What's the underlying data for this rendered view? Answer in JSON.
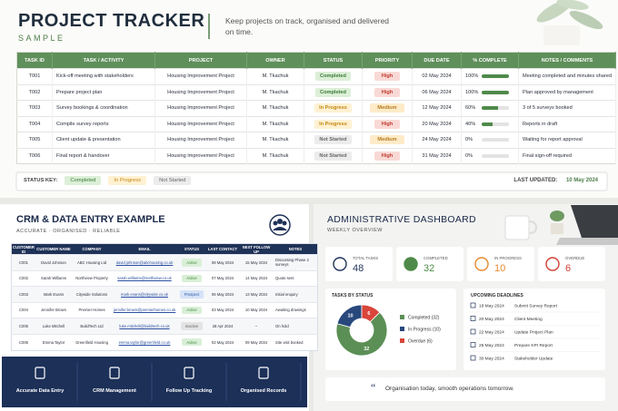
{
  "header": {
    "title": "PROJECT TRACKER",
    "subtitle": "SAMPLE",
    "tagline": "Keep projects on track, organised and delivered on time."
  },
  "project_table": {
    "columns": [
      "TASK ID",
      "TASK / ACTIVITY",
      "PROJECT",
      "OWNER",
      "STATUS",
      "PRIORITY",
      "DUE DATE",
      "% COMPLETE",
      "NOTES / COMMENTS"
    ],
    "rows": [
      {
        "id": "T001",
        "task": "Kick-off meeting with stakeholders",
        "project": "Housing Improvement Project",
        "owner": "M. Tkachuk",
        "status": "Completed",
        "priority": {
          "label": "High",
          "bg": "#f9d9d6",
          "fg": "#c0392b"
        },
        "due": "02 May 2024",
        "complete": {
          "value": 100,
          "label": "100%"
        },
        "notes": "Meeting completed and minutes shared"
      },
      {
        "id": "T002",
        "task": "Prepare project plan",
        "project": "Housing Improvement Project",
        "owner": "M. Tkachuk",
        "status": "Completed",
        "priority": {
          "label": "High",
          "bg": "#f9d9d6",
          "fg": "#c0392b"
        },
        "due": "06 May 2024",
        "complete": {
          "value": 100,
          "label": "100%"
        },
        "notes": "Plan approved by management"
      },
      {
        "id": "T003",
        "task": "Survey bookings & coordination",
        "project": "Housing Improvement Project",
        "owner": "M. Tkachuk",
        "status": "In Progress",
        "priority": {
          "label": "Medium",
          "bg": "#fdebc8",
          "fg": "#b7791f"
        },
        "due": "12 May 2024",
        "complete": {
          "value": 60,
          "label": "60%"
        },
        "notes": "3 of 5 surveys booked"
      },
      {
        "id": "T004",
        "task": "Compile survey reports",
        "project": "Housing Improvement Project",
        "owner": "M. Tkachuk",
        "status": "In Progress",
        "priority": {
          "label": "High",
          "bg": "#f9d9d6",
          "fg": "#c0392b"
        },
        "due": "20 May 2024",
        "complete": {
          "value": 40,
          "label": "40%"
        },
        "notes": "Reports in draft"
      },
      {
        "id": "T005",
        "task": "Client update & presentation",
        "project": "Housing Improvement Project",
        "owner": "M. Tkachuk",
        "status": "Not Started",
        "priority": {
          "label": "Medium",
          "bg": "#fdebc8",
          "fg": "#b7791f"
        },
        "due": "24 May 2024",
        "complete": {
          "value": 0,
          "label": "0%"
        },
        "notes": "Waiting for report approval"
      },
      {
        "id": "T006",
        "task": "Final report & handover",
        "project": "Housing Improvement Project",
        "owner": "M. Tkachuk",
        "status": "Not Started",
        "priority": {
          "label": "High",
          "bg": "#f9d9d6",
          "fg": "#c0392b"
        },
        "due": "31 May 2024",
        "complete": {
          "value": 0,
          "label": "0%"
        },
        "notes": "Final sign-off required"
      }
    ]
  },
  "status_key": {
    "label": "STATUS KEY:",
    "items": [
      {
        "label": "Completed",
        "bg": "#dcefd7",
        "fg": "#3c7a3a"
      },
      {
        "label": "In Progress",
        "bg": "#fff1d2",
        "fg": "#c48712"
      },
      {
        "label": "Not Started",
        "bg": "#ececec",
        "fg": "#666666"
      }
    ]
  },
  "last_updated": {
    "label": "LAST UPDATED:",
    "value": "10 May 2024"
  },
  "crm": {
    "title": "CRM & DATA ENTRY EXAMPLE",
    "subtitle": "ACCURATE · ORGANISED · RELIABLE",
    "columns": [
      "CUSTOMER ID",
      "CUSTOMER NAME",
      "COMPANY",
      "EMAIL",
      "STATUS",
      "LAST CONTACT",
      "NEXT FOLLOW UP",
      "NOTES"
    ],
    "rows": [
      {
        "id": "C001",
        "name": "David Johnson",
        "company": "ABC Housing Ltd",
        "email": "david.johnson@abchousing.co.uk",
        "status": {
          "label": "Active",
          "bg": "#d9efd6",
          "fg": "#3f8a3c"
        },
        "last_contact": "08 May 2024",
        "next": "15 May 2024",
        "notes": "Discussing Phase 2 surveys"
      },
      {
        "id": "C002",
        "name": "Sarah Williams",
        "company": "Northview Property",
        "email": "sarah.williams@northview.co.uk",
        "status": {
          "label": "Active",
          "bg": "#d9efd6",
          "fg": "#3f8a3c"
        },
        "last_contact": "07 May 2024",
        "next": "14 May 2024",
        "notes": "Quote sent"
      },
      {
        "id": "C003",
        "name": "Mark Evans",
        "company": "Citywide Solutions",
        "email": "mark.evans@citywide.co.uk",
        "status": {
          "label": "Prospect",
          "bg": "#d6e3f7",
          "fg": "#2f5aa8"
        },
        "last_contact": "06 May 2024",
        "next": "13 May 2024",
        "notes": "Initial enquiry"
      },
      {
        "id": "C004",
        "name": "Jennifer Brown",
        "company": "Premier Homes",
        "email": "jennifer.brown@premierhomes.co.uk",
        "status": {
          "label": "Active",
          "bg": "#d9efd6",
          "fg": "#3f8a3c"
        },
        "last_contact": "03 May 2024",
        "next": "10 May 2024",
        "notes": "Awaiting drawings"
      },
      {
        "id": "C005",
        "name": "Luke Mitchell",
        "company": "BuildTech Ltd",
        "email": "luke.mitchell@buildtech.co.uk",
        "status": {
          "label": "Inactive",
          "bg": "#e4e4e4",
          "fg": "#666666"
        },
        "last_contact": "28 Apr 2024",
        "next": "–",
        "notes": "On hold"
      },
      {
        "id": "C006",
        "name": "Emma Taylor",
        "company": "Greenfield Housing",
        "email": "emma.taylor@greenfield.co.uk",
        "status": {
          "label": "Active",
          "bg": "#d9efd6",
          "fg": "#3f8a3c"
        },
        "last_contact": "02 May 2024",
        "next": "09 May 2024",
        "notes": "Site visit booked"
      }
    ],
    "features": [
      "Accurate Data Entry",
      "CRM Management",
      "Follow Up Tracking",
      "Organised Records"
    ]
  },
  "dashboard": {
    "title": "ADMINISTRATIVE DASHBOARD",
    "subtitle": "WEEKLY OVERVIEW",
    "kpis": [
      {
        "label": "TOTAL TASKS",
        "value": 48,
        "color": "#1f3257"
      },
      {
        "label": "COMPLETED",
        "value": 32,
        "color": "#4f8a4a"
      },
      {
        "label": "IN PROGRESS",
        "value": 10,
        "color": "#e58a2e"
      },
      {
        "label": "OVERDUE",
        "value": 6,
        "color": "#d23f33"
      }
    ],
    "tasks_by_status": {
      "title": "TASKS BY STATUS",
      "items": [
        {
          "label": "Completed (32)",
          "value": 32,
          "color": "#5b8f55"
        },
        {
          "label": "In Progress (10)",
          "value": 10,
          "color": "#28487c"
        },
        {
          "label": "Overdue (6)",
          "value": 6,
          "color": "#d9453a"
        }
      ]
    },
    "deadlines": {
      "title": "UPCOMING DEADLINES",
      "items": [
        {
          "date": "18 May 2024",
          "task": "Submit Survey Report"
        },
        {
          "date": "20 May 2024",
          "task": "Client Meeting"
        },
        {
          "date": "22 May 2024",
          "task": "Update Project Plan"
        },
        {
          "date": "25 May 2024",
          "task": "Prepare KPI Report"
        },
        {
          "date": "30 May 2024",
          "task": "Stakeholder Update"
        }
      ]
    },
    "quote": "Organisation today, smooth operations tomorrow."
  }
}
